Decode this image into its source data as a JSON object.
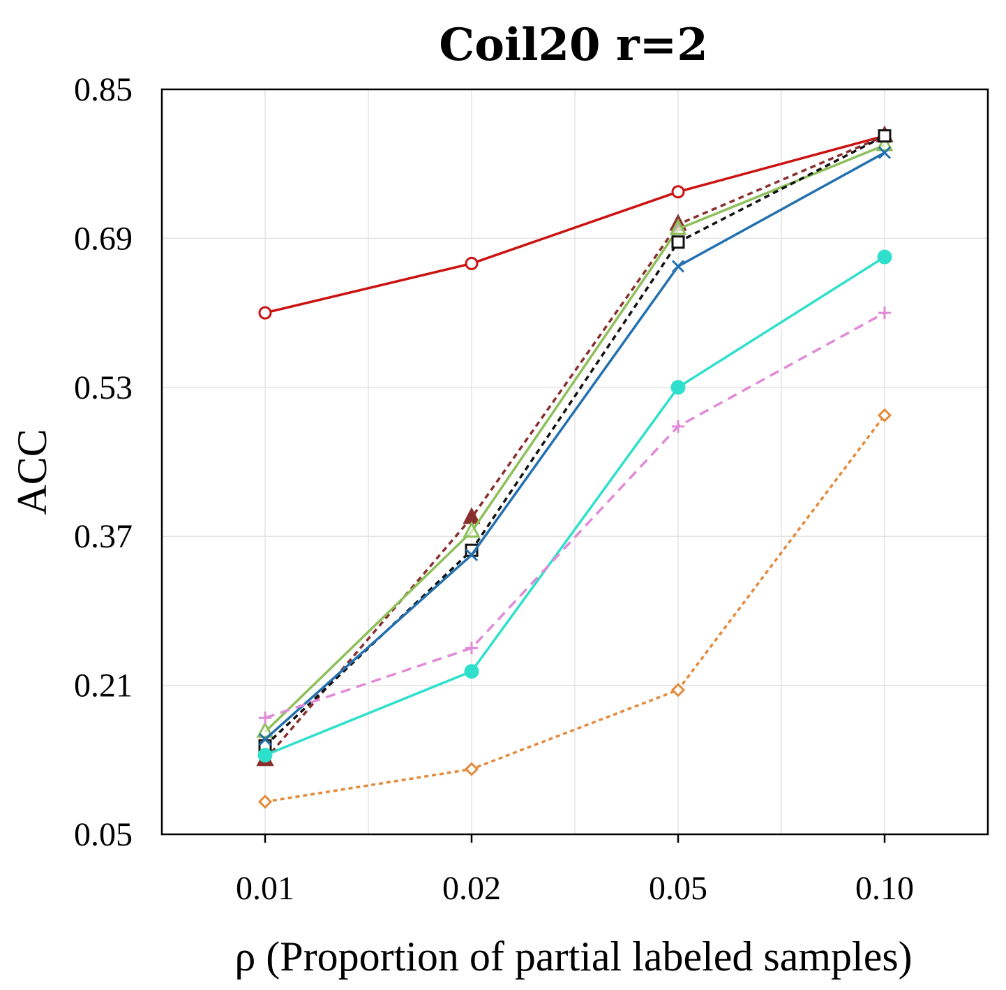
{
  "chart_data": {
    "type": "line",
    "title": "Coil20 r=2",
    "xlabel": "ρ (Proportion of partial labeled samples)",
    "ylabel": "ACC",
    "categories": [
      "0.01",
      "0.02",
      "0.05",
      "0.10"
    ],
    "yticks": [
      "0.05",
      "0.21",
      "0.37",
      "0.53",
      "0.69",
      "0.85"
    ],
    "ylim": [
      0.05,
      0.85
    ],
    "grid": true,
    "series": [
      {
        "name": "red-circle",
        "color": "#cc1111",
        "dash": "",
        "marker": "circle-open",
        "values": [
          0.61,
          0.663,
          0.74,
          0.8
        ]
      },
      {
        "name": "brown-triangle",
        "color": "#8a2e2e",
        "dash": "8,6",
        "marker": "triangle-filled",
        "values": [
          0.13,
          0.39,
          0.705,
          0.8
        ]
      },
      {
        "name": "green-triangle",
        "color": "#8dc05a",
        "dash": "",
        "marker": "triangle-open",
        "values": [
          0.16,
          0.375,
          0.7,
          0.79
        ]
      },
      {
        "name": "black-square",
        "color": "#111111",
        "dash": "8,6",
        "marker": "square-open",
        "values": [
          0.145,
          0.355,
          0.686,
          0.8
        ]
      },
      {
        "name": "blue-x",
        "color": "#2270b0",
        "dash": "",
        "marker": "x",
        "values": [
          0.152,
          0.35,
          0.66,
          0.782
        ]
      },
      {
        "name": "cyan-dot",
        "color": "#2ee0cc",
        "dash": "",
        "marker": "circle-filled",
        "values": [
          0.135,
          0.225,
          0.53,
          0.67
        ]
      },
      {
        "name": "pink-plus",
        "color": "#e08ad8",
        "dash": "14,9",
        "marker": "plus",
        "values": [
          0.175,
          0.25,
          0.488,
          0.61
        ]
      },
      {
        "name": "orange-diamond",
        "color": "#e38a3a",
        "dash": "6,5",
        "marker": "diamond-open",
        "values": [
          0.085,
          0.12,
          0.205,
          0.5
        ]
      }
    ]
  }
}
